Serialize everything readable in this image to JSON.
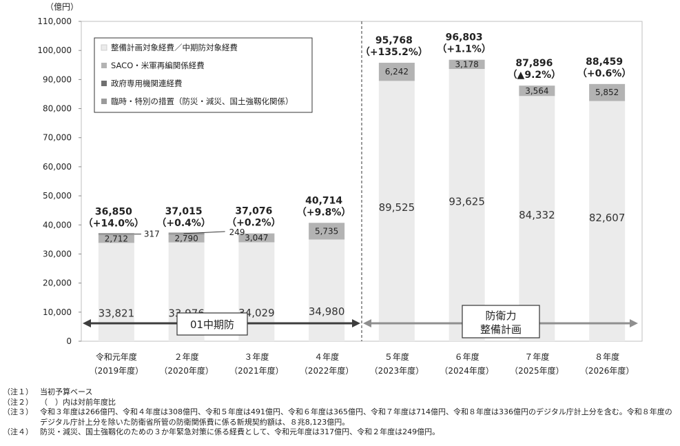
{
  "chart_data": {
    "type": "bar",
    "stacked": true,
    "y_unit": "（億円）",
    "ylim": [
      0,
      110000
    ],
    "yticks": [
      "0",
      "10,000",
      "20,000",
      "30,000",
      "40,000",
      "50,000",
      "60,000",
      "70,000",
      "80,000",
      "90,000",
      "100,000",
      "110,000"
    ],
    "grid": false,
    "legend_position": "top-left",
    "categories": [
      {
        "name": "令和元年度",
        "sub": "（2019年度）"
      },
      {
        "name": "２年度",
        "sub": "（2020年度）"
      },
      {
        "name": "３年度",
        "sub": "（2021年度）"
      },
      {
        "name": "４年度",
        "sub": "（2022年度）"
      },
      {
        "name": "５年度",
        "sub": "（2023年度）"
      },
      {
        "name": "６年度",
        "sub": "（2024年度）"
      },
      {
        "name": "７年度",
        "sub": "（2025年度）"
      },
      {
        "name": "８年度",
        "sub": "（2026年度）"
      }
    ],
    "series": [
      {
        "name": "整備計画対象経費／中期防対象経費",
        "color": "#ebebeb",
        "values": [
          33821,
          33976,
          34029,
          34980,
          89525,
          93625,
          84332,
          82607
        ],
        "labels": [
          "33,821",
          "33,976",
          "34,029",
          "34,980",
          "89,525",
          "93,625",
          "84,332",
          "82,607"
        ]
      },
      {
        "name": "SACO・米軍再編関係経費",
        "color": "#b3b3b3",
        "values": [
          2712,
          2790,
          3047,
          5735,
          6242,
          3178,
          3564,
          5852
        ],
        "labels": [
          "2,712",
          "2,790",
          "3,047",
          "5,735",
          "6,242",
          "3,178",
          "3,564",
          "5,852"
        ]
      },
      {
        "name": "政府専用機関連経費",
        "color": "#707070",
        "values": [
          0,
          0,
          0,
          0,
          0,
          0,
          0,
          0
        ],
        "labels": [
          "",
          "",
          "",
          "",
          "",
          "",
          "",
          ""
        ]
      },
      {
        "name": "臨時・特別の措置（防災・減災、国土強靱化関係）",
        "color": "#9a9a9a",
        "values": [
          317,
          249,
          0,
          0,
          0,
          0,
          0,
          0
        ],
        "labels": [
          "317",
          "249",
          "",
          "",
          "",
          "",
          "",
          ""
        ]
      }
    ],
    "totals": [
      "36,850",
      "37,015",
      "37,076",
      "40,714",
      "95,768",
      "96,803",
      "87,896",
      "88,459"
    ],
    "changes": [
      "（+14.0%）",
      "（+0.4%）",
      "（+0.2%）",
      "（+9.8%）",
      "（+135.2%）",
      "（+1.1%）",
      "（▲9.2%）",
      "（+0.6%）"
    ],
    "period_labels": [
      {
        "text": "01中期防",
        "from": 0,
        "to": 3
      },
      {
        "text": "防衛力\n整備計画",
        "from": 4,
        "to": 7
      }
    ]
  },
  "notes": [
    {
      "tag": "（注１）",
      "text": "当初予算ベース"
    },
    {
      "tag": "（注２）",
      "text": "（　）内は対前年度比"
    },
    {
      "tag": "（注３）",
      "text": "令和３年度は266億円、令和４年度は308億円、令和５年度は491億円、令和６年度は365億円、令和７年度は714億円、令和８年度は336億円のデジタル庁計上分を含む。令和８年度のデジタル庁計上分を除いた防衛省所管の防衛関係費に係る新規契約額は、８兆8,123億円。"
    },
    {
      "tag": "（注４）",
      "text": "防災・減災、国土強靱化のための３か年緊急対策に係る経費として、令和元年度は317億円、令和２年度は249億円。"
    }
  ]
}
